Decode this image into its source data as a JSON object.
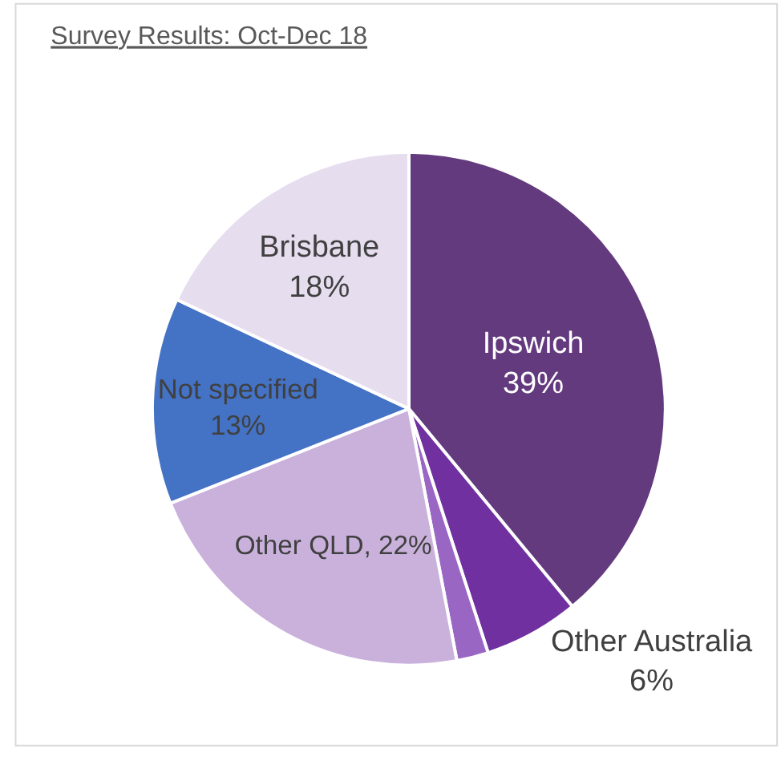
{
  "chart_data": {
    "type": "pie",
    "title": "Survey Results: Oct-Dec 18",
    "categories": [
      "Ipswich",
      "Other Australia",
      null,
      "Other QLD",
      "Not specified",
      "Brisbane"
    ],
    "values": [
      39,
      6,
      2,
      22,
      13,
      18
    ],
    "colors": [
      "#643a7f",
      "#7030a0",
      "#9966c4",
      "#c9b1dc",
      "#4472c4",
      "#e6ddef"
    ],
    "value_labels": [
      "39%",
      "6%",
      null,
      "22%",
      "13%",
      "18%"
    ],
    "legend": false
  }
}
